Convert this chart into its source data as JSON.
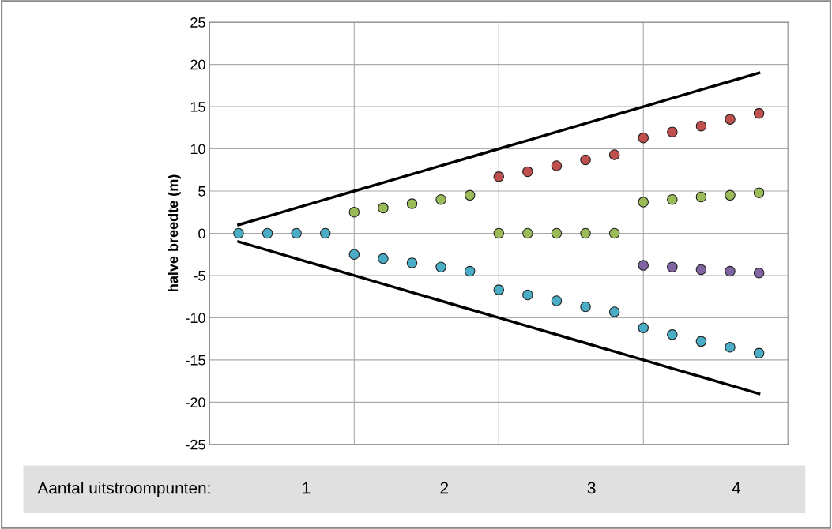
{
  "chart_data": {
    "type": "scatter",
    "ylabel": "halve breedte (m)",
    "categories": [
      null,
      null,
      null,
      null,
      null,
      null,
      null,
      null,
      null,
      null,
      null,
      null,
      null,
      null,
      null,
      null,
      null,
      null,
      null
    ],
    "ylim": [
      -25,
      25
    ],
    "yticks": [
      -25,
      -20,
      -15,
      -10,
      -5,
      0,
      5,
      10,
      15,
      20,
      25
    ],
    "tick_labels": "y",
    "grid": true,
    "marker": "circle",
    "legend": false,
    "series": [
      {
        "color": "#4bacc6",
        "values": [
          0,
          0,
          0,
          0,
          -2.5,
          -3,
          -3.5,
          -4,
          -4.5,
          -6.7,
          -7.3,
          -8,
          -8.7,
          -9.3,
          -11.2,
          -12,
          -12.8,
          -13.5,
          -14.2
        ]
      },
      {
        "color": "#9bbb59",
        "values": [
          null,
          null,
          null,
          null,
          2.5,
          3,
          3.5,
          4,
          4.5,
          0,
          0,
          0,
          0,
          0,
          3.7,
          4,
          4.3,
          4.5,
          4.8
        ]
      },
      {
        "color": "#c0504d",
        "values": [
          null,
          null,
          null,
          null,
          null,
          null,
          null,
          null,
          null,
          6.7,
          7.3,
          8,
          8.7,
          9.3,
          11.3,
          12,
          12.7,
          13.5,
          14.2
        ]
      },
      {
        "color": "#8064a2",
        "values": [
          null,
          null,
          null,
          null,
          null,
          null,
          null,
          null,
          null,
          null,
          null,
          null,
          null,
          null,
          -3.8,
          -4,
          -4.3,
          -4.5,
          -4.7
        ]
      },
      {
        "type": "line",
        "color": "#000000",
        "marker": "none",
        "values": [
          1,
          2,
          3,
          4,
          5,
          6,
          7,
          8,
          9,
          10,
          11,
          12,
          13,
          14,
          15,
          16,
          17,
          18,
          19
        ]
      },
      {
        "type": "line",
        "color": "#000000",
        "marker": "none",
        "values": [
          -1,
          -2,
          -3,
          -4,
          -5,
          -6,
          -7,
          -8,
          -9,
          -10,
          -11,
          -12,
          -13,
          -14,
          -15,
          -16,
          -17,
          -18,
          -19
        ]
      }
    ],
    "annotations": [
      "Aantal uitstroompunten:",
      "1",
      "2",
      "3",
      "4"
    ]
  }
}
